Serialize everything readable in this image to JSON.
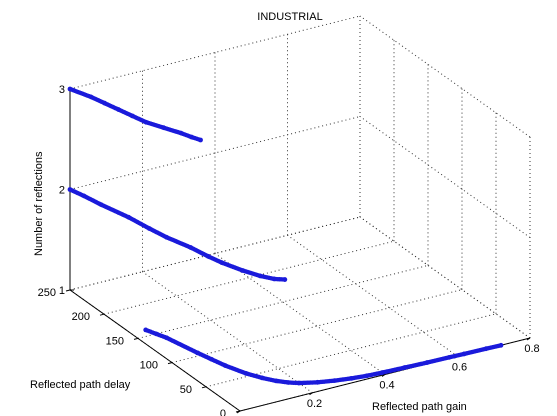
{
  "chart_data": {
    "type": "scatter",
    "title": "INDUSTRIAL",
    "xlabel": "Reflected path gain",
    "ylabel": "Reflected path delay",
    "zlabel": "Number of reflections",
    "xlim": [
      0,
      0.8
    ],
    "ylim": [
      0,
      250
    ],
    "zlim": [
      1,
      3
    ],
    "x_ticks": [
      "0",
      "0.2",
      "0.4",
      "0.6",
      "0.8"
    ],
    "y_ticks": [
      "0",
      "50",
      "100",
      "150",
      "200",
      "250"
    ],
    "z_ticks": [
      "1",
      "2",
      "3"
    ],
    "grid": true,
    "marker_color": "#1a1adb",
    "series": [
      {
        "reflections": 1,
        "style": "markers",
        "points": [
          [
            0.04,
            160
          ],
          [
            0.05,
            150
          ],
          [
            0.06,
            140
          ],
          [
            0.08,
            105
          ],
          [
            0.09,
            90
          ],
          [
            0.1,
            75
          ],
          [
            0.12,
            55
          ],
          [
            0.14,
            42
          ],
          [
            0.16,
            32
          ],
          [
            0.18,
            25
          ],
          [
            0.2,
            20
          ],
          [
            0.24,
            14
          ],
          [
            0.28,
            10
          ],
          [
            0.32,
            7
          ],
          [
            0.36,
            5
          ],
          [
            0.4,
            4
          ],
          [
            0.46,
            3
          ],
          [
            0.52,
            2
          ],
          [
            0.58,
            1.5
          ],
          [
            0.62,
            1
          ],
          [
            0.68,
            0.5
          ],
          [
            0.72,
            0
          ]
        ]
      },
      {
        "reflections": 2,
        "style": "markers",
        "points": [
          [
            0.0,
            250
          ],
          [
            0.01,
            235
          ],
          [
            0.02,
            215
          ],
          [
            0.04,
            185
          ],
          [
            0.05,
            160
          ],
          [
            0.06,
            140
          ],
          [
            0.08,
            115
          ],
          [
            0.09,
            95
          ],
          [
            0.1,
            80
          ],
          [
            0.12,
            60
          ],
          [
            0.14,
            45
          ],
          [
            0.16,
            35
          ],
          [
            0.18,
            30
          ]
        ]
      },
      {
        "reflections": 3,
        "style": "markers",
        "points": [
          [
            0.0,
            250
          ],
          [
            0.02,
            230
          ],
          [
            0.03,
            215
          ],
          [
            0.04,
            200
          ],
          [
            0.05,
            185
          ],
          [
            0.06,
            170
          ],
          [
            0.08,
            155
          ],
          [
            0.1,
            140
          ],
          [
            0.11,
            130
          ],
          [
            0.12,
            122
          ]
        ]
      }
    ]
  }
}
